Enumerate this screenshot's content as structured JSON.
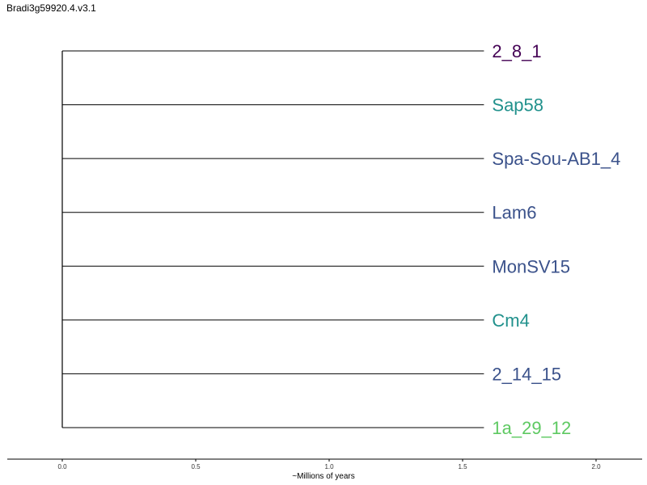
{
  "title": "Bradi3g59920.4.v3.1",
  "chart_data": {
    "type": "dendrogram",
    "title": "Bradi3g59920.4.v3.1",
    "xlabel": "~Millions of years",
    "xlim": [
      -0.2,
      2.18
    ],
    "ticks": [
      {
        "value": 0.0,
        "label": "0.0"
      },
      {
        "value": 0.5,
        "label": "0.5"
      },
      {
        "value": 1.0,
        "label": "1.0"
      },
      {
        "value": 1.5,
        "label": "1.5"
      },
      {
        "value": 2.0,
        "label": "2.0"
      }
    ],
    "root_x": 0.0,
    "leaves": [
      {
        "name": "2_8_1",
        "branch_end": 1.58,
        "color": "#440154"
      },
      {
        "name": "Sap58",
        "branch_end": 1.58,
        "color": "#21918c"
      },
      {
        "name": "Spa-Sou-AB1_4",
        "branch_end": 1.58,
        "color": "#3b528b"
      },
      {
        "name": "Lam6",
        "branch_end": 1.58,
        "color": "#3b528b"
      },
      {
        "name": "MonSV15",
        "branch_end": 1.58,
        "color": "#3b528b"
      },
      {
        "name": "Cm4",
        "branch_end": 1.58,
        "color": "#21918c"
      },
      {
        "name": "2_14_15",
        "branch_end": 1.58,
        "color": "#3b528b"
      },
      {
        "name": "1a_29_12",
        "branch_end": 1.58,
        "color": "#5ec962"
      }
    ],
    "grid": false,
    "legend": "none"
  }
}
